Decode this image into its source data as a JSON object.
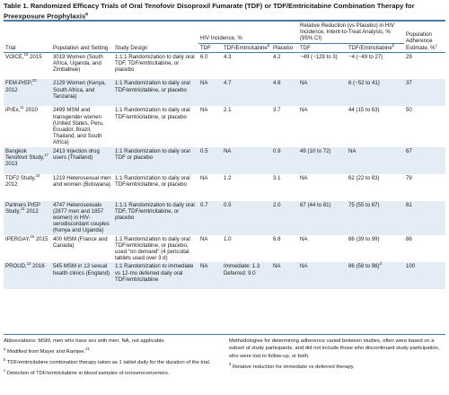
{
  "title": {
    "main": "Table 1. Randomized Efficacy Trials of Oral Tenofovir Disoproxil Fumarate (TDF) or TDF/Emtricitabine Combination Therapy for Preexposure Prophylaxis",
    "sup": "a"
  },
  "header": {
    "trial": "Trial",
    "population": "Population and Setting",
    "design": "Study Design",
    "hiv_group": "HIV Incidence, %",
    "reduction_group": "Relative Reduction (vs Placebo) in HIV Incidence, Intent-to-Treat Analysis, % (95% CI)",
    "adherence": "Population Adherence Estimate, %",
    "adherence_sup": "c",
    "tdf": "TDF",
    "tdf_ftc": "TDF/Emtricitabine",
    "tdf_ftc_sup": "b",
    "placebo": "Placebo",
    "red_tdf": "TDF",
    "red_tdf_ftc": "TDF/Emtricitabine",
    "red_tdf_ftc_sup": "b"
  },
  "rows": [
    {
      "trial": "VOICE,",
      "sup": "19",
      "year": " 2015",
      "population": "3019 Women (South Africa, Uganda, and Zimbabwe)",
      "design": "1:1:1 Randomization to daily oral TDF, TDF/emtricitabine, or placebo",
      "tdf": "6.0",
      "tdf_ftc": "4.3",
      "placebo": "4.2",
      "red_tdf": "−49 (−129 to 3)",
      "red_tdf_ftc": "−4 (−49 to 27)",
      "red_sup": "",
      "adherence": "29"
    },
    {
      "trial": "FEM-PrEP,",
      "sup": "20",
      "year": " 2012",
      "population": "2129 Women (Kenya, South Africa, and Tanzania)",
      "design": "1:1 Randomization to daily oral TDF/emtricitabine, or placebo",
      "tdf": "NA",
      "tdf_ftc": "4.7",
      "placebo": "4.8",
      "red_tdf": "NA",
      "red_tdf_ftc": "6 (−52 to 41)",
      "red_sup": "",
      "adherence": "37"
    },
    {
      "trial": "iPrEx,",
      "sup": "11",
      "year": " 2010",
      "population": "2499 MSM and transgender women (United States, Peru, Ecuador, Brazil, Thailand, and South Africa)",
      "design": "1:1 Randomization to daily oral TDF/emtricitabine, or placebo",
      "tdf": "NA",
      "tdf_ftc": "2.1",
      "placebo": "3.7",
      "red_tdf": "NA",
      "red_tdf_ftc": "44 (15 to 63)",
      "red_sup": "",
      "adherence": "50"
    },
    {
      "trial": "Bangkok Tenofovir Study,",
      "sup": "17",
      "year": " 2013",
      "population": "2413 Injection drug users (Thailand)",
      "design": "1:1 Randomization to daily oral TDF or placebo",
      "tdf": "0.5",
      "tdf_ftc": "NA",
      "placebo": "0.9",
      "red_tdf": "49 (10 to 72)",
      "red_tdf_ftc": "NA",
      "red_sup": "",
      "adherence": "67"
    },
    {
      "trial": "TDF2 Study,",
      "sup": "16",
      "year": " 2012",
      "population": "1219 Heterosexual men and women (Botswana)",
      "design": "1:1 Randomization to daily oral TDF/emtricitabine, or placebo",
      "tdf": "NA",
      "tdf_ftc": "1.2",
      "placebo": "3.1",
      "red_tdf": "NA",
      "red_tdf_ftc": "62 (22 to 83)",
      "red_sup": "",
      "adherence": "79"
    },
    {
      "trial": "Partners PrEP Study,",
      "sup": "12",
      "year": " 2012",
      "population": "4747 Heterosexuals (2877 men and 1857 women) in HIV-serodiscordant couples (Kenya and Uganda)",
      "design": "1:1:1 Randomization to daily oral TDF, TDF/emtricitabine, or placebo",
      "tdf": "0.7",
      "tdf_ftc": "0.5",
      "placebo": "2.0",
      "red_tdf": "67 (44 to 81)",
      "red_tdf_ftc": "75 (55 to 87)",
      "red_sup": "",
      "adherence": "81"
    },
    {
      "trial": "IPERGAY,",
      "sup": "18",
      "year": " 2015",
      "population": "400 MSM (France and Canada)",
      "design": "1:1 Randomization to daily oral TDF/emtricitabine, or placebo, used “on demand” (4 pericoital tablets used over 3 d)",
      "tdf": "NA",
      "tdf_ftc": "1.0",
      "placebo": "6.8",
      "red_tdf": "NA",
      "red_tdf_ftc": "86 (39 to 99)",
      "red_sup": "",
      "adherence": "86"
    },
    {
      "trial": "PROUD,",
      "sup": "13",
      "year": " 2016",
      "population": "545 MSM in 13 sexual health clinics (England)",
      "design": "1:1 Randomization to immediate vs 12-mo deferred daily oral TDF/emtricitabine",
      "tdf": "NA",
      "tdf_ftc": "Immediate: 1.3 Deferred: 9.0",
      "placebo": "NA",
      "red_tdf": "NA",
      "red_tdf_ftc": "86 (58 to 96)",
      "red_sup": "d",
      "adherence": "100"
    }
  ],
  "footnotes": {
    "abbr": "Abbreviations: MSM, men who have sex with men; NA, not applicable.",
    "a_mark": "a",
    "a_text": " Modified from Mayer and Ramjee.",
    "a_ref": "21",
    "b_mark": "b",
    "b_text": " TDF/emtricitabine combination therapy taken as 1 tablet daily for the duration of the trial.",
    "c_mark": "c",
    "c_text": " Detection of TDF/emtricitabine in blood samples of nonseroconvertors.",
    "right_text": "Methodologies for determining adherence varied between studies, often were based on a subset of study participants, and did not include those who discontinued study participation, who were lost to follow-up, or both.",
    "d_mark": "d",
    "d_text": " Relative reduction for immediate vs deferred therapy."
  },
  "colors": {
    "accent": "#4a7aa8",
    "shade": "#e4edf6"
  }
}
